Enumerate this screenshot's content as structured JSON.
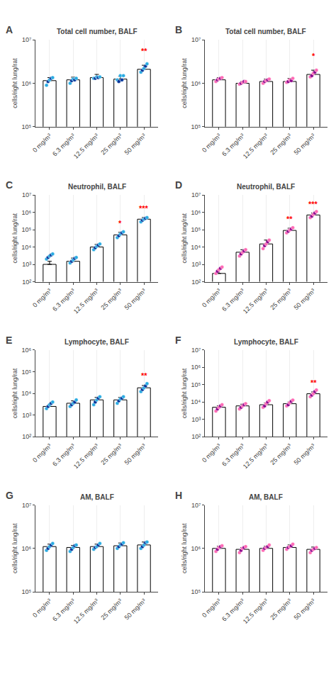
{
  "chart_data": [
    {
      "type": "bar",
      "label": "A",
      "title": "Total cell number, BALF",
      "ylabel": "cells/right lung/rat",
      "categories": [
        "0 mg/m³",
        "6.3 mg/m³",
        "12.5 mg/m³",
        "25 mg/m³",
        "50 mg/m³"
      ],
      "log": "y",
      "grid": "x",
      "ylim": [
        100000,
        10000000
      ],
      "yticks": [
        {
          "value": 100000,
          "label": "10⁵"
        },
        {
          "value": 1000000,
          "label": "10⁶"
        },
        {
          "value": 10000000,
          "label": "10⁷"
        }
      ],
      "series": [
        {
          "type": "bar",
          "color": "white",
          "values": [
            1150000,
            1200000,
            1350000,
            1250000,
            2100000
          ],
          "errors": [
            200000,
            180000,
            250000,
            200000,
            500000
          ]
        },
        {
          "type": "scatter",
          "colors": [
            "#29ABE2",
            "#003399",
            "#29ABE2",
            "#003399",
            "#29ABE2"
          ],
          "values": [
            [
              900000,
              1100000,
              1200000,
              1300000,
              1350000
            ],
            [
              1000000,
              1150000,
              1250000,
              1200000,
              1300000
            ],
            [
              1300000,
              1300000,
              1400000,
              1350000,
              1400000
            ],
            [
              1200000,
              1100000,
              1500000,
              1200000,
              1500000
            ],
            [
              1800000,
              2000000,
              2200000,
              2500000,
              2800000
            ]
          ]
        }
      ],
      "annotations": [
        {
          "x": 4,
          "text": "**",
          "color": "red"
        }
      ]
    },
    {
      "type": "bar",
      "label": "B",
      "title": "Total cell number, BALF",
      "ylabel": "cells/right lung/rat",
      "categories": [
        "0 mg/m³",
        "6.3 mg/m³",
        "12.5 mg/m³",
        "25 mg/m³",
        "50 mg/m³"
      ],
      "log": "y",
      "grid": "x",
      "ylim": [
        100000,
        10000000
      ],
      "yticks": [
        {
          "value": 100000,
          "label": "10⁵"
        },
        {
          "value": 1000000,
          "label": "10⁶"
        },
        {
          "value": 10000000,
          "label": "10⁷"
        }
      ],
      "series": [
        {
          "type": "bar",
          "color": "white",
          "values": [
            1200000,
            1000000,
            1100000,
            1100000,
            1600000
          ],
          "errors": [
            150000,
            100000,
            150000,
            200000,
            400000
          ]
        },
        {
          "type": "scatter",
          "colors": [
            "#FF69B4",
            "#8B008B",
            "#FF69B4",
            "#8B008B",
            "#FF69B4"
          ],
          "values": [
            [
              1100000,
              1200000,
              1250000,
              1300000,
              1350000
            ],
            [
              950000,
              1000000,
              1050000,
              1100000,
              1100000
            ],
            [
              1000000,
              1100000,
              1150000,
              1200000,
              1250000
            ],
            [
              1050000,
              1100000,
              1200000,
              1150000,
              1300000
            ],
            [
              1400000,
              1500000,
              1700000,
              1800000,
              2000000
            ]
          ]
        }
      ],
      "annotations": [
        {
          "x": 4,
          "text": "*",
          "color": "red"
        }
      ]
    },
    {
      "type": "bar",
      "label": "C",
      "title": "Neutrophil, BALF",
      "ylabel": "cells/right lung/rat",
      "categories": [
        "0 mg/m³",
        "6.3 mg/m³",
        "12.5 mg/m³",
        "25 mg/m³",
        "50 mg/m³"
      ],
      "log": "y",
      "grid": "x",
      "ylim": [
        100,
        10000000
      ],
      "yticks": [
        {
          "value": 100,
          "label": "10²"
        },
        {
          "value": 1000,
          "label": "10³"
        },
        {
          "value": 10000,
          "label": "10⁴"
        },
        {
          "value": 100000,
          "label": "10⁵"
        },
        {
          "value": 1000000,
          "label": "10⁶"
        },
        {
          "value": 10000000,
          "label": "10⁷"
        }
      ],
      "series": [
        {
          "type": "bar",
          "color": "white",
          "values": [
            1000,
            1500,
            10000,
            50000,
            400000
          ],
          "errors": [
            500,
            800,
            4000,
            20000,
            100000
          ]
        },
        {
          "type": "scatter",
          "colors": [
            "#29ABE2",
            "#003399",
            "#29ABE2",
            "#003399",
            "#29ABE2"
          ],
          "values": [
            [
              2000,
              2500,
              3000,
              3500,
              4000
            ],
            [
              1200,
              1500,
              1800,
              2200,
              2500
            ],
            [
              7000,
              9000,
              11000,
              13000,
              15000
            ],
            [
              35000,
              45000,
              55000,
              65000,
              75000
            ],
            [
              280000,
              350000,
              400000,
              450000,
              500000
            ]
          ]
        }
      ],
      "annotations": [
        {
          "x": 3,
          "text": "*",
          "color": "red"
        },
        {
          "x": 4,
          "text": "***",
          "color": "red"
        }
      ]
    },
    {
      "type": "bar",
      "label": "D",
      "title": "Neutrophil, BALF",
      "ylabel": "cells/right lung/rat",
      "categories": [
        "0 mg/m³",
        "6.3 mg/m³",
        "12.5 mg/m³",
        "25 mg/m³",
        "50 mg/m³"
      ],
      "log": "y",
      "grid": "x",
      "ylim": [
        100,
        10000000
      ],
      "yticks": [
        {
          "value": 100,
          "label": "10²"
        },
        {
          "value": 1000,
          "label": "10³"
        },
        {
          "value": 10000,
          "label": "10⁴"
        },
        {
          "value": 100000,
          "label": "10⁵"
        },
        {
          "value": 1000000,
          "label": "10⁶"
        },
        {
          "value": 10000000,
          "label": "10⁷"
        }
      ],
      "series": [
        {
          "type": "bar",
          "color": "white",
          "values": [
            300,
            5000,
            15000,
            90000,
            700000
          ],
          "errors": [
            200,
            2000,
            10000,
            30000,
            200000
          ]
        },
        {
          "type": "scatter",
          "colors": [
            "#FF69B4",
            "#8B008B",
            "#FF69B4",
            "#8B008B",
            "#FF69B4"
          ],
          "values": [
            [
              300,
              400,
              500,
              600,
              700
            ],
            [
              3000,
              4000,
              5000,
              6000,
              7000
            ],
            [
              8000,
              12000,
              15000,
              20000,
              25000
            ],
            [
              65000,
              80000,
              95000,
              110000,
              130000
            ],
            [
              500000,
              600000,
              750000,
              900000,
              1100000
            ]
          ]
        }
      ],
      "annotations": [
        {
          "x": 3,
          "text": "**",
          "color": "red"
        },
        {
          "x": 4,
          "text": "***",
          "color": "red"
        }
      ]
    },
    {
      "type": "bar",
      "label": "E",
      "title": "Lymphocyte, BALF",
      "ylabel": "cells/right lung/rat",
      "categories": [
        "0 mg/m³",
        "6.3 mg/m³",
        "12.5 mg/m³",
        "25 mg/m³",
        "50 mg/m³"
      ],
      "log": "y",
      "grid": "x",
      "ylim": [
        100,
        1000000
      ],
      "yticks": [
        {
          "value": 100,
          "label": "10²"
        },
        {
          "value": 1000,
          "label": "10³"
        },
        {
          "value": 10000,
          "label": "10⁴"
        },
        {
          "value": 100000,
          "label": "10⁵"
        },
        {
          "value": 1000000,
          "label": "10⁶"
        }
      ],
      "series": [
        {
          "type": "bar",
          "color": "white",
          "values": [
            2500,
            3500,
            5000,
            5000,
            18000
          ],
          "errors": [
            500,
            1000,
            1500,
            1500,
            5000
          ]
        },
        {
          "type": "scatter",
          "colors": [
            "#29ABE2",
            "#003399",
            "#29ABE2",
            "#003399",
            "#29ABE2"
          ],
          "values": [
            [
              2000,
              2500,
              3000,
              3500,
              4000
            ],
            [
              2500,
              3000,
              3500,
              4000,
              5000
            ],
            [
              3000,
              4000,
              5000,
              6000,
              7000
            ],
            [
              3500,
              4500,
              5500,
              6000,
              7000
            ],
            [
              12000,
              15000,
              18000,
              22000,
              28000
            ]
          ]
        }
      ],
      "annotations": [
        {
          "x": 4,
          "text": "**",
          "color": "red"
        }
      ]
    },
    {
      "type": "bar",
      "label": "F",
      "title": "Lymphocyte, BALF",
      "ylabel": "cells/right lung/rat",
      "categories": [
        "0 mg/m³",
        "6.3 mg/m³",
        "12.5 mg/m³",
        "25 mg/m³",
        "50 mg/m³"
      ],
      "log": "y",
      "grid": "x",
      "ylim": [
        100,
        10000000
      ],
      "yticks": [
        {
          "value": 100,
          "label": "10²"
        },
        {
          "value": 1000,
          "label": "10³"
        },
        {
          "value": 10000,
          "label": "10⁴"
        },
        {
          "value": 100000,
          "label": "10⁵"
        },
        {
          "value": 1000000,
          "label": "10⁶"
        },
        {
          "value": 10000000,
          "label": "10⁷"
        }
      ],
      "series": [
        {
          "type": "bar",
          "color": "white",
          "values": [
            5000,
            6000,
            7000,
            8000,
            30000
          ],
          "errors": [
            1000,
            1500,
            2000,
            2000,
            8000
          ]
        },
        {
          "type": "scatter",
          "colors": [
            "#FF69B4",
            "#8B008B",
            "#FF69B4",
            "#8B008B",
            "#FF69B4"
          ],
          "values": [
            [
              3000,
              4000,
              5000,
              6000,
              7000
            ],
            [
              4000,
              5000,
              6000,
              7000,
              8000
            ],
            [
              5000,
              6000,
              8000,
              10000,
              12000
            ],
            [
              6000,
              7000,
              9000,
              11000,
              13000
            ],
            [
              20000,
              25000,
              30000,
              40000,
              50000
            ]
          ]
        }
      ],
      "annotations": [
        {
          "x": 4,
          "text": "**",
          "color": "red"
        }
      ]
    },
    {
      "type": "bar",
      "label": "G",
      "title": "AM, BALF",
      "ylabel": "cells/right lung/rat",
      "categories": [
        "0 mg/m³",
        "6.3 mg/m³",
        "12.5 mg/m³",
        "25 mg/m³",
        "50 mg/m³"
      ],
      "log": "y",
      "grid": "x",
      "ylim": [
        100000,
        10000000
      ],
      "yticks": [
        {
          "value": 100000,
          "label": "10⁵"
        },
        {
          "value": 1000000,
          "label": "10⁶"
        },
        {
          "value": 10000000,
          "label": "10⁷"
        }
      ],
      "series": [
        {
          "type": "bar",
          "color": "white",
          "values": [
            1100000,
            1050000,
            1100000,
            1150000,
            1200000
          ],
          "errors": [
            150000,
            120000,
            150000,
            180000,
            200000
          ]
        },
        {
          "type": "scatter",
          "colors": [
            "#29ABE2",
            "#003399",
            "#29ABE2",
            "#003399",
            "#29ABE2"
          ],
          "values": [
            [
              900000,
              1000000,
              1100000,
              1200000,
              1300000
            ],
            [
              850000,
              950000,
              1050000,
              1150000,
              1200000
            ],
            [
              950000,
              1050000,
              1100000,
              1200000,
              1300000
            ],
            [
              1000000,
              1100000,
              1200000,
              1250000,
              1350000
            ],
            [
              1000000,
              1100000,
              1200000,
              1350000,
              1400000
            ]
          ]
        }
      ]
    },
    {
      "type": "bar",
      "label": "H",
      "title": "AM, BALF",
      "ylabel": "cells/right lung/rat",
      "categories": [
        "0 mg/m³",
        "6.3 mg/m³",
        "12.5 mg/m³",
        "25 mg/m³",
        "50 mg/m³"
      ],
      "log": "y",
      "grid": "x",
      "ylim": [
        100000,
        10000000
      ],
      "yticks": [
        {
          "value": 100000,
          "label": "10⁵"
        },
        {
          "value": 1000000,
          "label": "10⁶"
        },
        {
          "value": 10000000,
          "label": "10⁷"
        }
      ],
      "series": [
        {
          "type": "bar",
          "color": "white",
          "values": [
            1000000,
            950000,
            1000000,
            1050000,
            950000
          ],
          "errors": [
            120000,
            100000,
            130000,
            150000,
            120000
          ]
        },
        {
          "type": "scatter",
          "colors": [
            "#FF69B4",
            "#8B008B",
            "#FF69B4",
            "#8B008B",
            "#FF69B4"
          ],
          "values": [
            [
              850000,
              950000,
              1050000,
              1100000,
              1150000
            ],
            [
              800000,
              900000,
              1000000,
              1050000,
              1100000
            ],
            [
              900000,
              1000000,
              1050000,
              1100000,
              1200000
            ],
            [
              950000,
              1050000,
              1100000,
              1150000,
              1250000
            ],
            [
              800000,
              900000,
              950000,
              1000000,
              1050000
            ]
          ]
        }
      ]
    }
  ]
}
